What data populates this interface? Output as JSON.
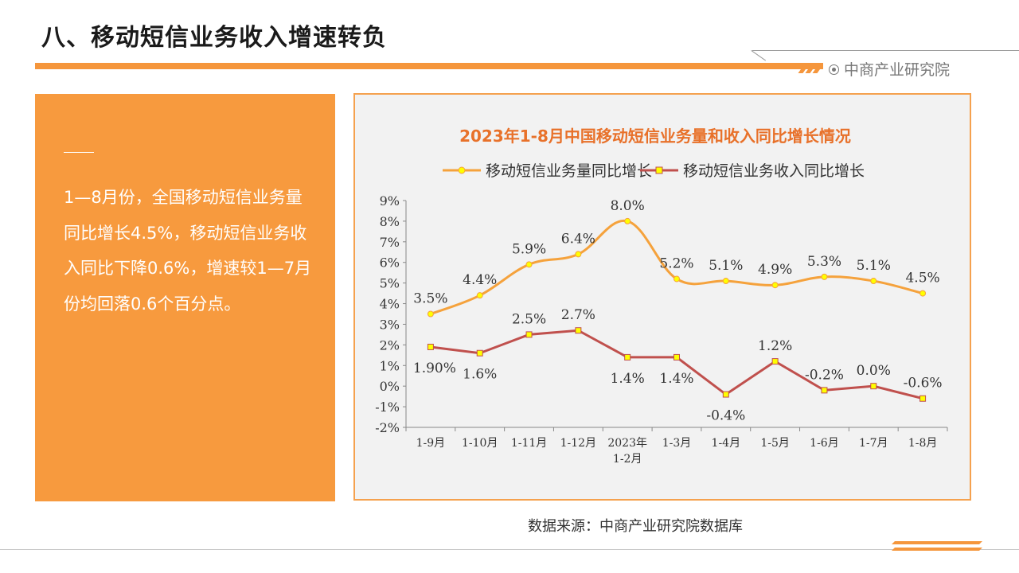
{
  "header": {
    "title": "八、移动短信业务收入增速转负",
    "brand": "中商产业研究院"
  },
  "panel": {
    "text": "1—8月份，全国移动短信业务量同比增长4.5%，移动短信业务收入同比下降0.6%，增速较1—7月份均回落0.6个百分点。"
  },
  "source": "数据来源：中商产业研究院数据库",
  "colors": {
    "accent": "#f5963c",
    "series_volume": "#f5a23c",
    "series_revenue": "#c0504d",
    "marker": "#ffff00"
  },
  "chart_data": {
    "type": "line",
    "title": "2023年1-8月中国移动短信业务量和收入同比增长情况",
    "categories": [
      "1-9月",
      "1-10月",
      "1-11月",
      "1-12月",
      "2023年\n1-2月",
      "1-3月",
      "1-4月",
      "1-5月",
      "1-6月",
      "1-7月",
      "1-8月"
    ],
    "series": [
      {
        "name": "移动短信业务量同比增长",
        "values": [
          3.5,
          4.4,
          5.9,
          6.4,
          8.0,
          5.2,
          5.1,
          4.9,
          5.3,
          5.1,
          4.5
        ],
        "labels": [
          "3.5%",
          "4.4%",
          "5.9%",
          "6.4%",
          "8.0%",
          "5.2%",
          "5.1%",
          "4.9%",
          "5.3%",
          "5.1%",
          "4.5%"
        ],
        "smooth": true
      },
      {
        "name": "移动短信业务收入同比增长",
        "values": [
          1.9,
          1.6,
          2.5,
          2.7,
          1.4,
          1.4,
          -0.4,
          1.2,
          -0.2,
          0.0,
          -0.6
        ],
        "labels": [
          "1.90%",
          "1.6%",
          "2.5%",
          "2.7%",
          "1.4%",
          "1.4%",
          "-0.4%",
          "1.2%",
          "-0.2%",
          "0.0%",
          "-0.6%"
        ],
        "smooth": false
      }
    ],
    "yticks": [
      "9%",
      "8%",
      "7%",
      "6%",
      "5%",
      "4%",
      "3%",
      "2%",
      "1%",
      "0%",
      "-1%",
      "-2%"
    ],
    "ylim": [
      -2,
      9
    ],
    "legend": "top",
    "grid": false
  }
}
